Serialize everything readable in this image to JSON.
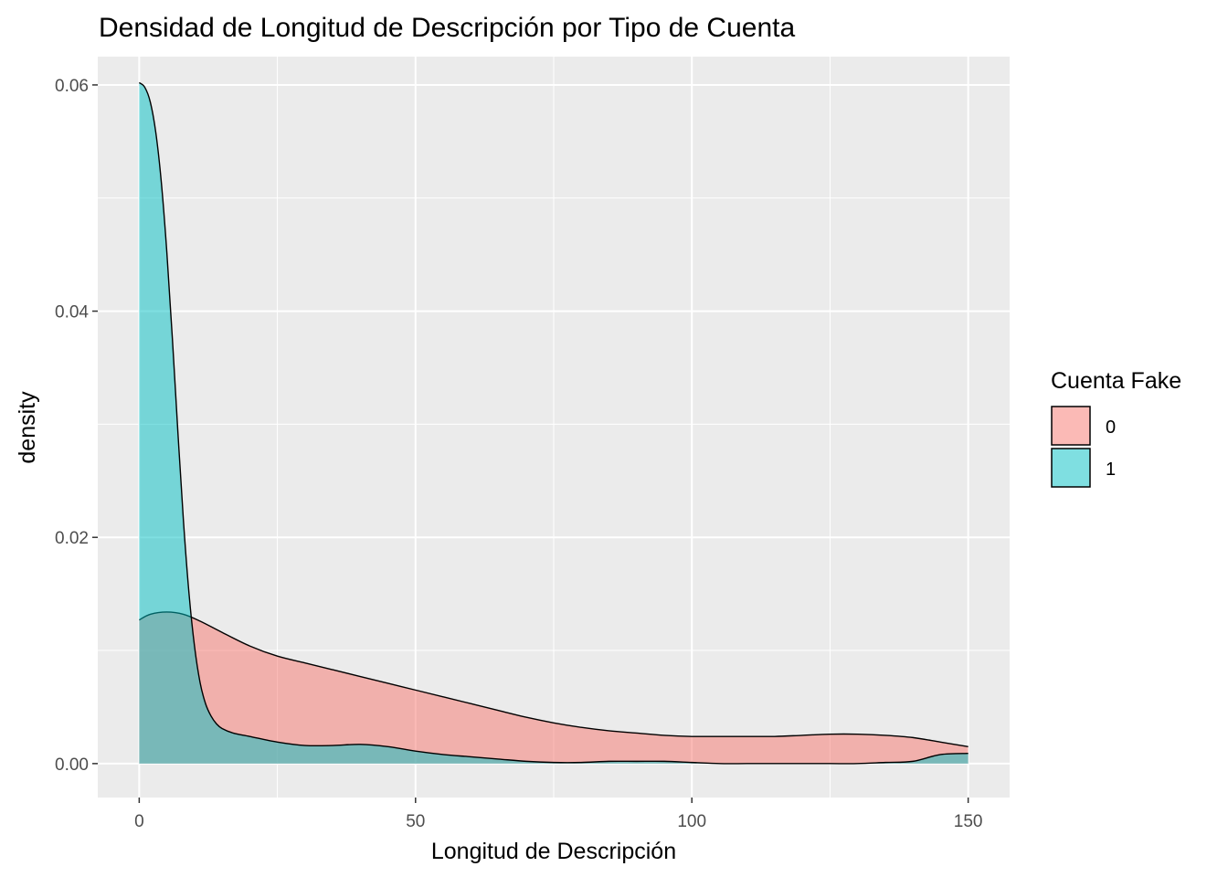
{
  "chart_data": {
    "type": "area",
    "title": "Densidad de Longitud de Descripción por Tipo de Cuenta",
    "xlabel": "Longitud de Descripción",
    "ylabel": "density",
    "xlim": [
      -7.5,
      157.5
    ],
    "ylim": [
      -0.003,
      0.0625
    ],
    "x_ticks": [
      0,
      50,
      100,
      150
    ],
    "x_tick_labels": [
      "0",
      "50",
      "100",
      "150"
    ],
    "y_ticks": [
      0,
      0.02,
      0.04,
      0.06
    ],
    "y_tick_labels": [
      "0.00",
      "0.02",
      "0.04",
      "0.06"
    ],
    "grid": true,
    "legend": {
      "title": "Cuenta Fake",
      "position": "right"
    },
    "series": [
      {
        "name": "0",
        "color": "#F8766D",
        "x": [
          0,
          2,
          5,
          8,
          11,
          15,
          20,
          25,
          30,
          35,
          40,
          45,
          50,
          55,
          60,
          65,
          70,
          75,
          80,
          85,
          90,
          95,
          100,
          105,
          110,
          115,
          120,
          125,
          130,
          135,
          140,
          145,
          150
        ],
        "values": [
          0.0127,
          0.0132,
          0.0134,
          0.0132,
          0.0126,
          0.0116,
          0.0104,
          0.0095,
          0.0089,
          0.0083,
          0.0077,
          0.0071,
          0.0065,
          0.0059,
          0.0053,
          0.0047,
          0.0041,
          0.0036,
          0.0032,
          0.0029,
          0.0027,
          0.0025,
          0.0024,
          0.0024,
          0.0024,
          0.0024,
          0.0025,
          0.0026,
          0.0026,
          0.0025,
          0.0023,
          0.0019,
          0.0015
        ]
      },
      {
        "name": "1",
        "color": "#00BFC4",
        "x": [
          0,
          1,
          2,
          3,
          4,
          5,
          6,
          7,
          8,
          9,
          10,
          11,
          12,
          13,
          14,
          15,
          17,
          20,
          25,
          30,
          35,
          40,
          45,
          50,
          55,
          60,
          65,
          70,
          75,
          80,
          85,
          90,
          95,
          100,
          105,
          110,
          115,
          120,
          125,
          130,
          135,
          140,
          145,
          150
        ],
        "values": [
          0.0602,
          0.0598,
          0.0585,
          0.0558,
          0.0514,
          0.0452,
          0.0376,
          0.0293,
          0.0215,
          0.0151,
          0.0104,
          0.0072,
          0.0053,
          0.0042,
          0.0035,
          0.0031,
          0.0027,
          0.0024,
          0.0019,
          0.0016,
          0.0016,
          0.0017,
          0.0015,
          0.0011,
          0.0008,
          0.0006,
          0.0004,
          0.0002,
          0.0001,
          0.0001,
          0.0002,
          0.0002,
          0.0002,
          0.0001,
          0.0,
          0.0,
          0.0,
          0.0,
          0.0,
          0.0,
          0.0001,
          0.0002,
          0.0008,
          0.0009
        ]
      }
    ]
  }
}
